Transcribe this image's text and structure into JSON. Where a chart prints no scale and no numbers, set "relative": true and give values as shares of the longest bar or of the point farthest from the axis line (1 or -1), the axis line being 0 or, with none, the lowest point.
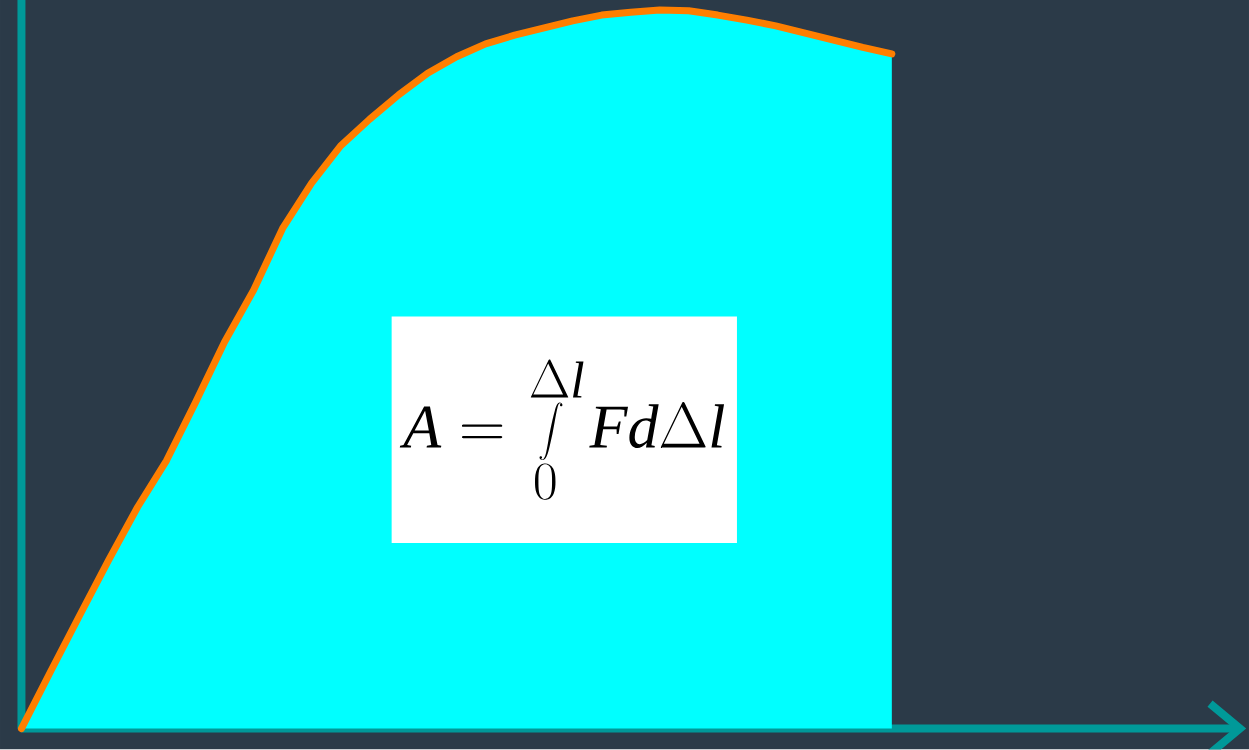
{
  "chart_data": {
    "type": "area",
    "relative": true,
    "categories": [
      null,
      null,
      null,
      null,
      null,
      null,
      null,
      null,
      null,
      null,
      null,
      null,
      null,
      null,
      null,
      null,
      null,
      null,
      null,
      null,
      null,
      null,
      null,
      null,
      null,
      null,
      null,
      null,
      null,
      null,
      null,
      null,
      null,
      null,
      null,
      null,
      null,
      null,
      null,
      null,
      null,
      null,
      null
    ],
    "series": [
      {
        "color": "#00ffff",
        "values": [
          0,
          0.079,
          0.157,
          0.234,
          0.308,
          0.373,
          0.454,
          0.538,
          0.61,
          0.696,
          0.759,
          0.811,
          0.848,
          0.882,
          0.912,
          0.935,
          0.953,
          0.965,
          0.975,
          0.985,
          0.993,
          0.997,
          1,
          0.999,
          0.993,
          0.986,
          0.978,
          0.968,
          0.958,
          0.948,
          0.939,
          null,
          null,
          null,
          null,
          null,
          null,
          null,
          null,
          null,
          null,
          null,
          null
        ]
      }
    ],
    "annotations": [
      "A=\\int\\limits_{0}^{\\Delta l}Fd\\Delta l"
    ]
  }
}
